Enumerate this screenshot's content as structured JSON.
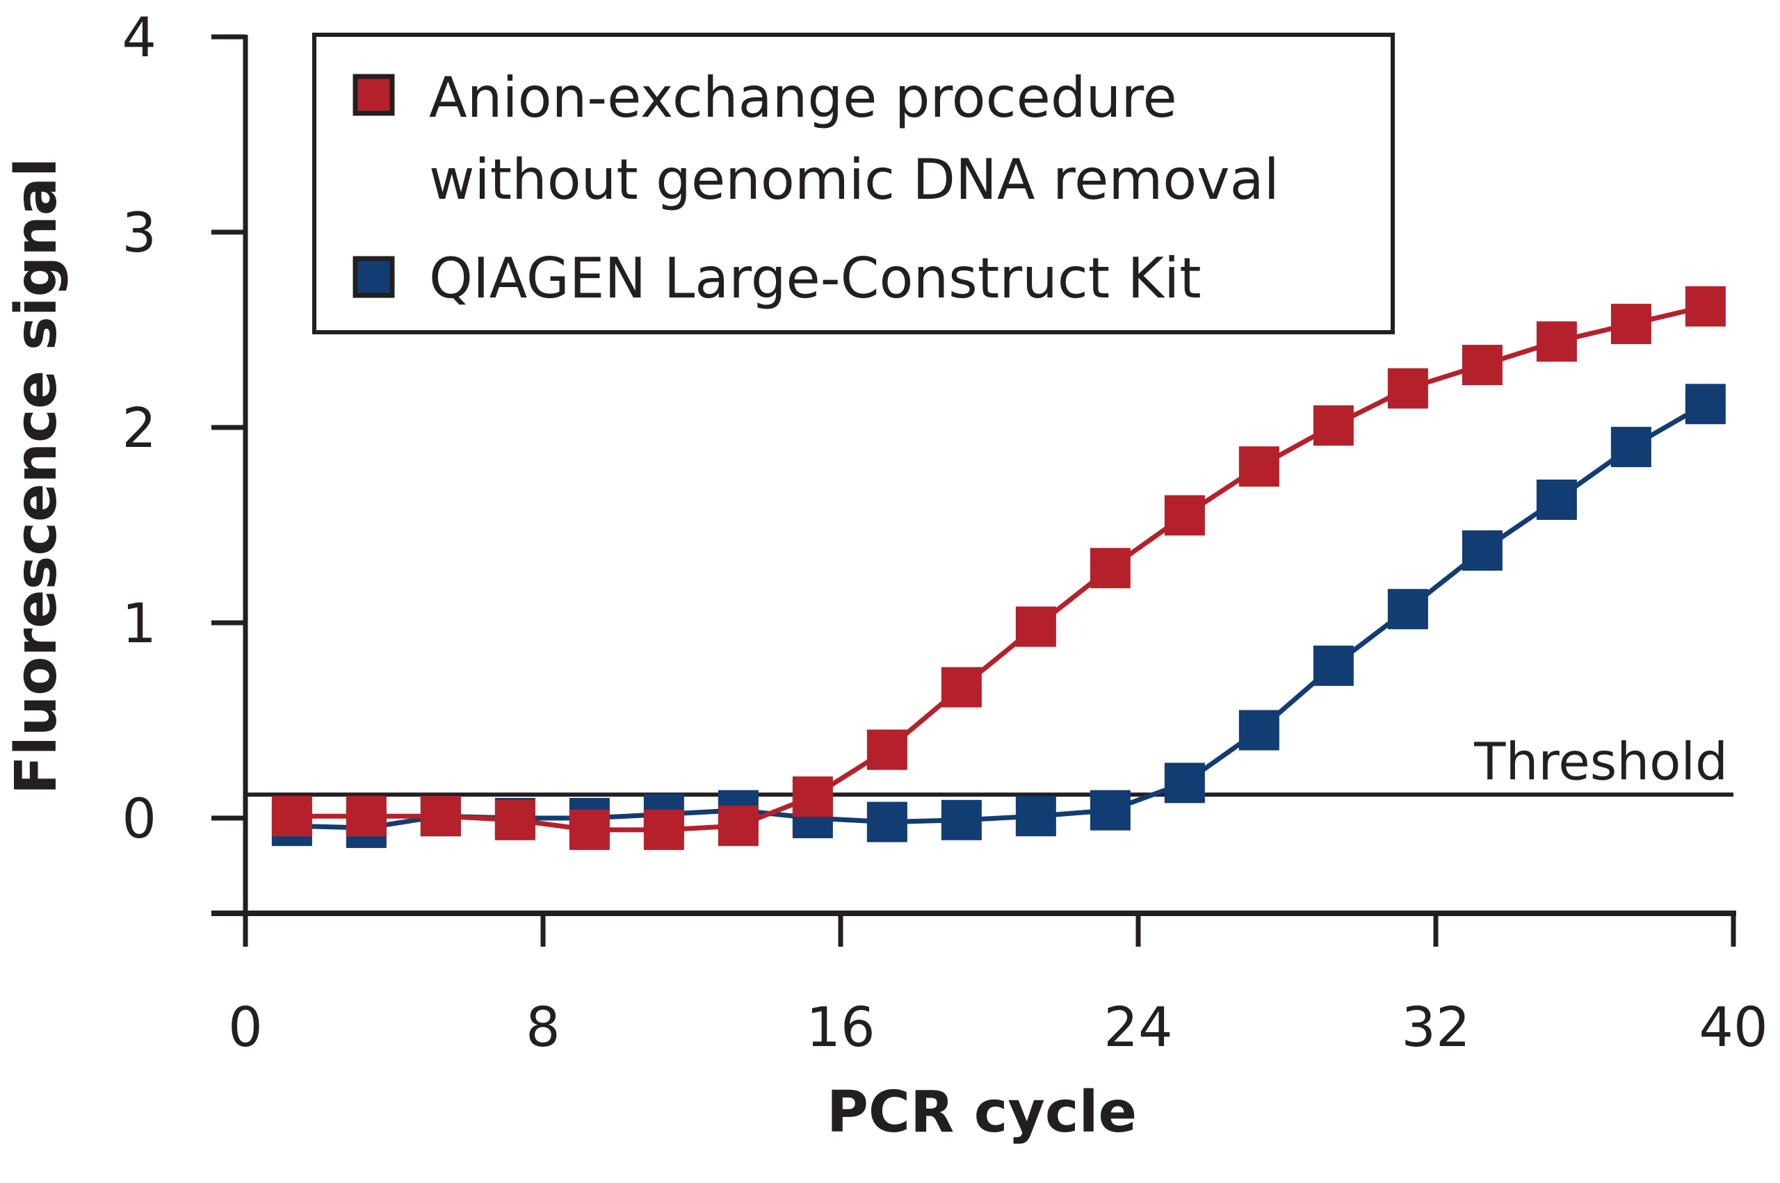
{
  "chart_data": {
    "type": "line",
    "title": "",
    "xlabel": "PCR cycle",
    "ylabel": "Fluorescence signal",
    "xlim": [
      0,
      40
    ],
    "ylim": [
      -0.5,
      4
    ],
    "xticks": [
      0,
      8,
      16,
      24,
      32,
      40
    ],
    "yticks": [
      0,
      1,
      2,
      3,
      4
    ],
    "xtick_labels": [
      "0",
      "8",
      "16",
      "24",
      "32",
      "40"
    ],
    "ytick_labels": [
      "0",
      "1",
      "2",
      "3",
      "4"
    ],
    "grid": false,
    "legend_position": "top-left",
    "threshold": {
      "label": "Threshold",
      "value": 0.12
    },
    "x": [
      1.25,
      3.25,
      5.25,
      7.25,
      9.25,
      11.25,
      13.25,
      15.25,
      17.25,
      19.25,
      21.25,
      23.25,
      25.25,
      27.25,
      29.25,
      31.25,
      33.25,
      35.25,
      37.25,
      39.25
    ],
    "series": [
      {
        "name": "Anion-exchange procedure without genomic DNA removal",
        "legend_lines": [
          "Anion-exchange procedure",
          "without genomic DNA removal"
        ],
        "color": "#b5212b",
        "marker": "square",
        "values": [
          0.01,
          0.01,
          0.01,
          -0.01,
          -0.06,
          -0.06,
          -0.04,
          0.11,
          0.35,
          0.67,
          0.98,
          1.28,
          1.55,
          1.8,
          2.01,
          2.2,
          2.32,
          2.44,
          2.53,
          2.62
        ]
      },
      {
        "name": "QIAGEN Large-Construct Kit",
        "legend_lines": [
          "QIAGEN Large-Construct Kit"
        ],
        "color": "#123d73",
        "marker": "square",
        "values": [
          -0.04,
          -0.05,
          0.01,
          0.0,
          0.0,
          0.02,
          0.04,
          0.0,
          -0.02,
          -0.01,
          0.01,
          0.04,
          0.18,
          0.45,
          0.78,
          1.07,
          1.37,
          1.63,
          1.9,
          2.12
        ]
      }
    ]
  }
}
